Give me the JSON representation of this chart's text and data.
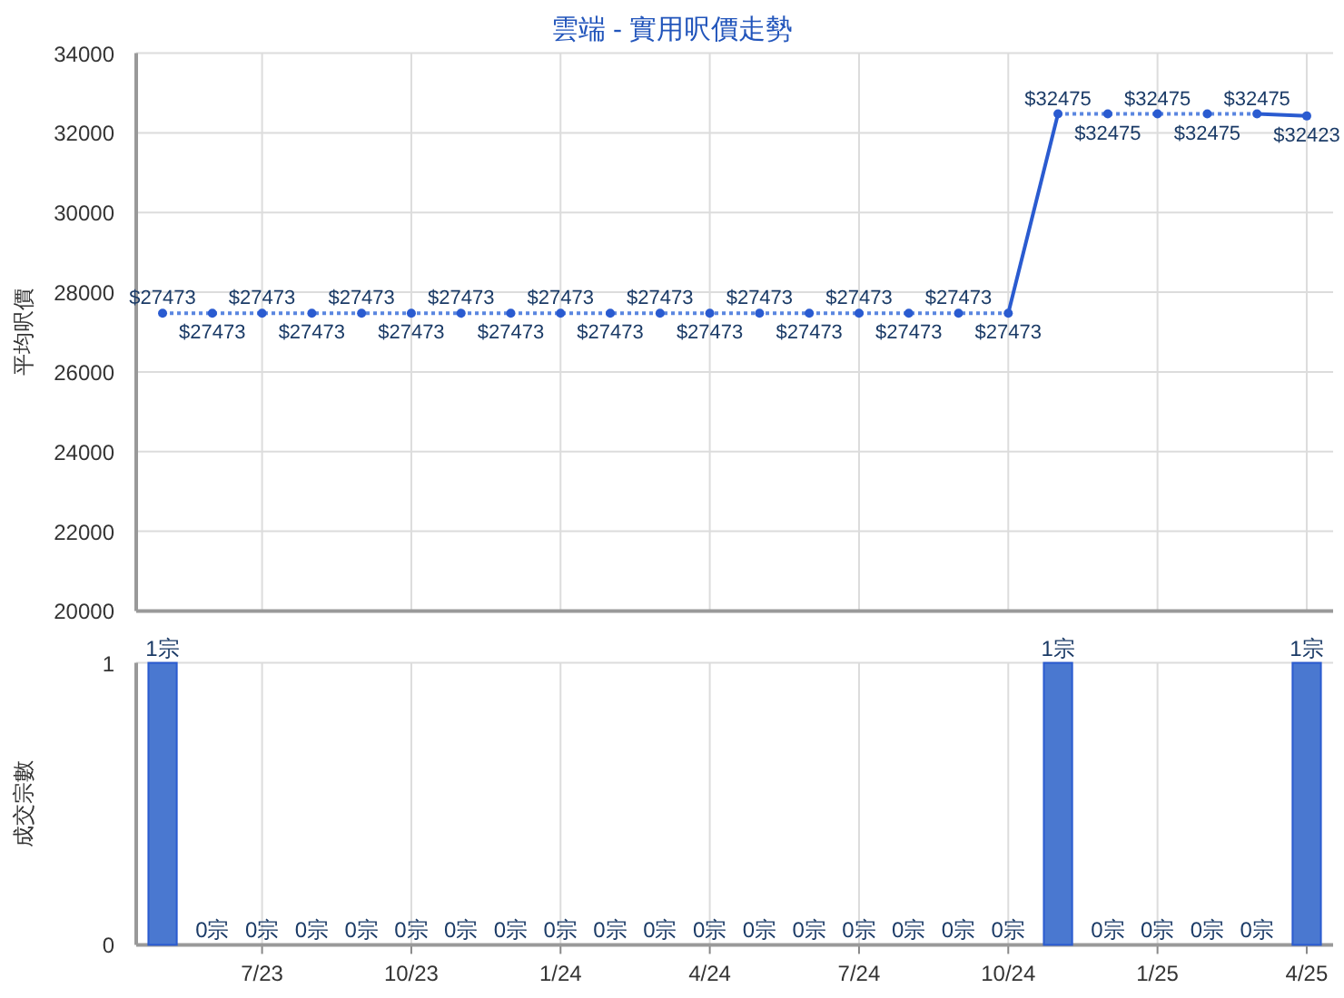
{
  "chart_data": [
    {
      "type": "line",
      "title": "雲端 - 實用呎價走勢",
      "ylabel": "平均呎價",
      "categories": [
        null,
        null,
        null,
        null,
        null,
        null,
        null,
        null,
        null,
        null,
        null,
        null,
        null,
        null,
        null,
        null,
        null,
        null,
        null,
        null,
        null,
        null,
        null,
        null
      ],
      "ylim": [
        20000,
        34000
      ],
      "yticks": [
        20000,
        22000,
        24000,
        26000,
        28000,
        30000,
        32000,
        34000
      ],
      "grid": true,
      "series": [
        {
          "line_style": "dotted",
          "marker": "none",
          "color": "#5a86e0",
          "values": [
            27473,
            27473,
            27473,
            27473,
            27473,
            27473,
            27473,
            27473,
            27473,
            27473,
            27473,
            27473,
            27473,
            27473,
            27473,
            27473,
            27473,
            27473,
            null,
            null,
            null,
            null,
            null,
            null
          ]
        },
        {
          "line_style": "dotted",
          "marker": "none",
          "color": "#5a86e0",
          "values": [
            null,
            null,
            null,
            null,
            null,
            null,
            null,
            null,
            null,
            null,
            null,
            null,
            null,
            null,
            null,
            null,
            null,
            null,
            32475,
            32475,
            32475,
            32475,
            32475,
            null
          ]
        },
        {
          "line_style": "solid",
          "marker": "none",
          "color": "#2a5bd0",
          "values": [
            null,
            null,
            null,
            null,
            null,
            null,
            null,
            null,
            null,
            null,
            null,
            null,
            null,
            null,
            null,
            null,
            null,
            27473,
            32475,
            null,
            null,
            null,
            32475,
            32423
          ]
        },
        {
          "type": "scatter",
          "marker": "circle",
          "color": "#2a5bd0",
          "values": [
            27473,
            27473,
            27473,
            27473,
            27473,
            27473,
            27473,
            27473,
            27473,
            27473,
            27473,
            27473,
            27473,
            27473,
            27473,
            27473,
            27473,
            27473,
            32475,
            32475,
            32475,
            32475,
            32475,
            32423
          ],
          "value_labels": [
            "$27473",
            "$27473",
            "$27473",
            "$27473",
            "$27473",
            "$27473",
            "$27473",
            "$27473",
            "$27473",
            "$27473",
            "$27473",
            "$27473",
            "$27473",
            "$27473",
            "$27473",
            "$27473",
            "$27473",
            "$27473",
            "$32475",
            "$32475",
            "$32475",
            "$32475",
            "$32475",
            "$32423"
          ]
        }
      ]
    },
    {
      "type": "bar",
      "ylabel": "成交宗數",
      "categories": [
        null,
        null,
        "7/23",
        null,
        null,
        "10/23",
        null,
        null,
        "1/24",
        null,
        null,
        "4/24",
        null,
        null,
        "7/24",
        null,
        null,
        "10/24",
        null,
        null,
        "1/25",
        null,
        null,
        "4/25"
      ],
      "values": [
        1,
        0,
        0,
        0,
        0,
        0,
        0,
        0,
        0,
        0,
        0,
        0,
        0,
        0,
        0,
        0,
        0,
        0,
        1,
        0,
        0,
        0,
        0,
        1
      ],
      "value_labels": [
        "1宗",
        "0宗",
        "0宗",
        "0宗",
        "0宗",
        "0宗",
        "0宗",
        "0宗",
        "0宗",
        "0宗",
        "0宗",
        "0宗",
        "0宗",
        "0宗",
        "0宗",
        "0宗",
        "0宗",
        "0宗",
        "1宗",
        "0宗",
        "0宗",
        "0宗",
        "0宗",
        "1宗"
      ],
      "color": "#4a78d0",
      "ylim": [
        0,
        1
      ],
      "yticks": [
        0,
        1
      ],
      "grid": true
    }
  ]
}
